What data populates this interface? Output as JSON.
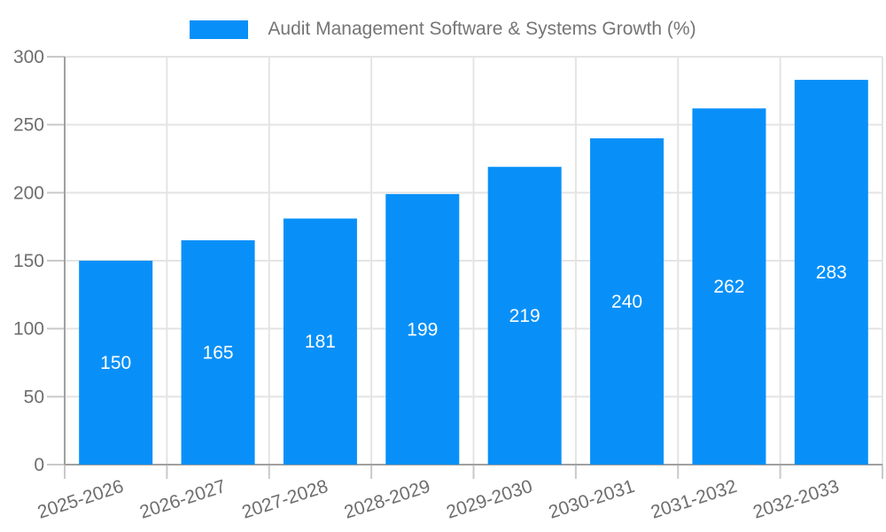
{
  "chart_data": {
    "type": "bar",
    "title": "Audit Management Software & Systems Growth (%)",
    "categories": [
      "2025-2026",
      "2026-2027",
      "2027-2028",
      "2028-2029",
      "2029-2030",
      "2030-2031",
      "2031-2032",
      "2032-2033"
    ],
    "values": [
      150,
      165,
      181,
      199,
      219,
      240,
      262,
      283
    ],
    "xlabel": "",
    "ylabel": "",
    "ylim": [
      0,
      300
    ],
    "yticks": [
      0,
      50,
      100,
      150,
      200,
      250,
      300
    ],
    "grid": true,
    "legend_position": "top",
    "x_label_rotation_deg": -18,
    "colors": {
      "bar": "#0890f8",
      "bar_value_label": "#ffffff",
      "axis_line": "#a0a0a0",
      "tick_mark": "#c9c9c9",
      "gridline": "#e4e4e4",
      "axis_text": "#6e6e6e",
      "legend_text": "#757575"
    }
  }
}
